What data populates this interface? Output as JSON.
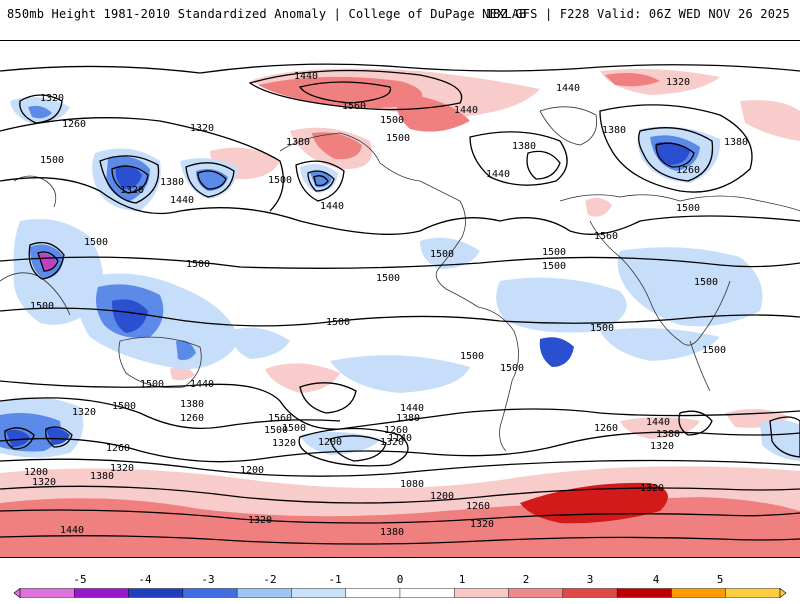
{
  "header": {
    "title_left": "850mb Height 1981-2010 Standardized Anomaly | College of DuPage NEXLAB",
    "title_right": "18Z GFS | F228 Valid: 06Z WED NOV 26 2025"
  },
  "contour_labels": [
    "1320",
    "1260",
    "1320",
    "1440",
    "1560",
    "1500",
    "1440",
    "1380",
    "1500",
    "1440",
    "1320",
    "1380",
    "1380",
    "1500",
    "1440",
    "1500",
    "1320",
    "1440",
    "1440",
    "1500",
    "1500",
    "1560",
    "1500",
    "1260",
    "1380",
    "1380",
    "1500",
    "1500",
    "1500",
    "1500",
    "1500",
    "1500",
    "1500",
    "1500",
    "1500",
    "1500",
    "1500",
    "1500",
    "1500",
    "1440",
    "1380",
    "1260",
    "1320",
    "1500",
    "1320",
    "1560",
    "1500",
    "1440",
    "1380",
    "1260",
    "1320",
    "1200",
    "1260",
    "1140",
    "1080",
    "1200",
    "1200",
    "1380",
    "1320",
    "1200",
    "1320",
    "1440",
    "1320",
    "1380",
    "1260",
    "1320",
    "1440",
    "1380",
    "1320",
    "1260",
    "1320"
  ],
  "colorbar": {
    "ticks": [
      "-5",
      "-4",
      "-3",
      "-2",
      "-1",
      "0",
      "1",
      "2",
      "3",
      "4",
      "5"
    ],
    "colors": [
      "#e070e0",
      "#9a18c8",
      "#1f3fbf",
      "#3f6fe0",
      "#9ec6f4",
      "#c9e2fb",
      "#ffffff",
      "#ffffff",
      "#f8c8c8",
      "#f08a8a",
      "#e04848",
      "#c00000",
      "#ff9a00",
      "#ffcc40"
    ]
  },
  "anomaly_colors": {
    "neg3": "#2a4fd0",
    "neg2": "#5c8ae8",
    "neg1": "#c6def9",
    "pos1": "#f9cccc",
    "pos2": "#f08080",
    "pos3": "#d21a1a",
    "extreme_neg": "#c040c0"
  }
}
